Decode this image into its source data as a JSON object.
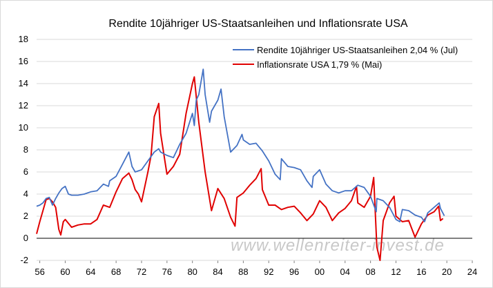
{
  "chart_data": {
    "type": "line",
    "title": "Rendite 10jähriger US-Staatsanleihen und Inflationsrate USA",
    "watermark": "www.wellenreiter-invest.de",
    "xlabel": "",
    "ylabel": "",
    "xlim": [
      1955.5,
      2024
    ],
    "ylim": [
      -2,
      18
    ],
    "x_ticks": [
      56,
      60,
      64,
      68,
      72,
      76,
      80,
      84,
      88,
      92,
      96,
      0,
      4,
      8,
      12,
      16,
      20,
      24
    ],
    "x_tick_labels": [
      "56",
      "60",
      "64",
      "68",
      "72",
      "76",
      "80",
      "84",
      "88",
      "92",
      "96",
      "00",
      "04",
      "08",
      "12",
      "16",
      "20",
      "24"
    ],
    "x_tick_years": [
      1956,
      1960,
      1964,
      1968,
      1972,
      1976,
      1980,
      1984,
      1988,
      1992,
      1996,
      2000,
      2004,
      2008,
      2012,
      2016,
      2020,
      2024
    ],
    "y_ticks": [
      -2,
      0,
      2,
      4,
      6,
      8,
      10,
      12,
      14,
      16,
      18
    ],
    "grid": true,
    "legend_position": "top-right",
    "series": [
      {
        "name": "Rendite 10jähriger US-Staatsanleihen 2,04 % (Jul)",
        "color": "#4472c4",
        "x": [
          1955.5,
          1956,
          1956.5,
          1957,
          1957.5,
          1958,
          1958.5,
          1959,
          1959.5,
          1960,
          1960.5,
          1961,
          1962,
          1963,
          1964,
          1965,
          1966,
          1966.8,
          1967,
          1968,
          1969,
          1970,
          1970.5,
          1971,
          1972,
          1973,
          1974,
          1974.7,
          1975,
          1976,
          1977,
          1978,
          1979,
          1980,
          1980.3,
          1980.6,
          1981,
          1981.7,
          1982,
          1982.7,
          1983,
          1984,
          1984.5,
          1985,
          1986,
          1987,
          1987.8,
          1988,
          1989,
          1990,
          1991,
          1992,
          1993,
          1993.8,
          1994,
          1995,
          1996,
          1997,
          1998,
          1998.8,
          1999,
          2000,
          2001,
          2002,
          2003,
          2004,
          2005,
          2006,
          2007,
          2008,
          2008.9,
          2009,
          2010,
          2011,
          2012,
          2012.6,
          2013,
          2014,
          2015,
          2016,
          2016.5,
          2017,
          2018,
          2018.8,
          2019,
          2019.6
        ],
        "values": [
          2.9,
          3.0,
          3.2,
          3.6,
          3.7,
          3.0,
          3.6,
          4.1,
          4.5,
          4.7,
          4.0,
          3.9,
          3.9,
          4.0,
          4.2,
          4.3,
          4.9,
          4.7,
          5.2,
          5.6,
          6.7,
          7.8,
          6.5,
          6.0,
          6.2,
          7.0,
          7.8,
          8.1,
          7.8,
          7.5,
          7.3,
          8.5,
          9.5,
          11.3,
          10.2,
          12.5,
          13.0,
          15.3,
          13.0,
          10.5,
          11.5,
          12.5,
          13.5,
          11.0,
          7.8,
          8.4,
          9.4,
          8.9,
          8.5,
          8.6,
          7.9,
          7.0,
          5.8,
          5.3,
          7.2,
          6.5,
          6.4,
          6.2,
          5.2,
          4.6,
          5.6,
          6.2,
          4.9,
          4.3,
          4.1,
          4.3,
          4.3,
          4.8,
          4.6,
          3.8,
          2.4,
          3.6,
          3.4,
          2.8,
          1.7,
          1.5,
          2.6,
          2.5,
          2.1,
          1.9,
          1.5,
          2.3,
          2.8,
          3.2,
          2.7,
          2.04
        ]
      },
      {
        "name": "Inflationsrate USA 1,79 % (Mai)",
        "color": "#e00000",
        "x": [
          1955.5,
          1956,
          1956.5,
          1957,
          1957.5,
          1958,
          1958.5,
          1959,
          1959.3,
          1959.7,
          1960,
          1961,
          1962,
          1963,
          1964,
          1965,
          1966,
          1967,
          1968,
          1969,
          1970,
          1970.5,
          1971,
          1971.5,
          1972,
          1973,
          1973.5,
          1974,
          1974.7,
          1975,
          1976,
          1977,
          1978,
          1979,
          1980,
          1980.3,
          1981,
          1982,
          1983,
          1984,
          1985,
          1986,
          1986.7,
          1987,
          1988,
          1989,
          1990,
          1990.8,
          1991,
          1992,
          1993,
          1994,
          1995,
          1996,
          1997,
          1998,
          1999,
          2000,
          2001,
          2002,
          2003,
          2004,
          2005,
          2005.8,
          2006,
          2007,
          2008,
          2008.5,
          2009,
          2009.5,
          2010,
          2011,
          2011.7,
          2012,
          2013,
          2014,
          2015,
          2016,
          2017,
          2018,
          2018.7,
          2019,
          2019.4
        ],
        "values": [
          0.4,
          1.5,
          2.5,
          3.5,
          3.6,
          3.3,
          2.8,
          0.8,
          0.3,
          1.5,
          1.7,
          1.0,
          1.2,
          1.3,
          1.3,
          1.7,
          3.0,
          2.8,
          4.2,
          5.4,
          5.9,
          5.3,
          4.4,
          4.0,
          3.3,
          6.0,
          7.5,
          11.0,
          12.2,
          9.5,
          5.8,
          6.5,
          7.6,
          11.3,
          14.0,
          14.6,
          10.5,
          6.0,
          2.5,
          4.5,
          3.6,
          1.9,
          1.1,
          3.7,
          4.1,
          4.8,
          5.4,
          6.3,
          4.4,
          3.0,
          3.0,
          2.6,
          2.8,
          2.9,
          2.3,
          1.6,
          2.2,
          3.4,
          2.8,
          1.6,
          2.3,
          2.7,
          3.4,
          4.7,
          3.2,
          2.8,
          3.8,
          5.5,
          -0.8,
          -2.0,
          1.6,
          3.2,
          3.8,
          2.0,
          1.5,
          1.6,
          0.1,
          1.3,
          2.1,
          2.4,
          2.9,
          1.6,
          1.79
        ]
      }
    ]
  }
}
